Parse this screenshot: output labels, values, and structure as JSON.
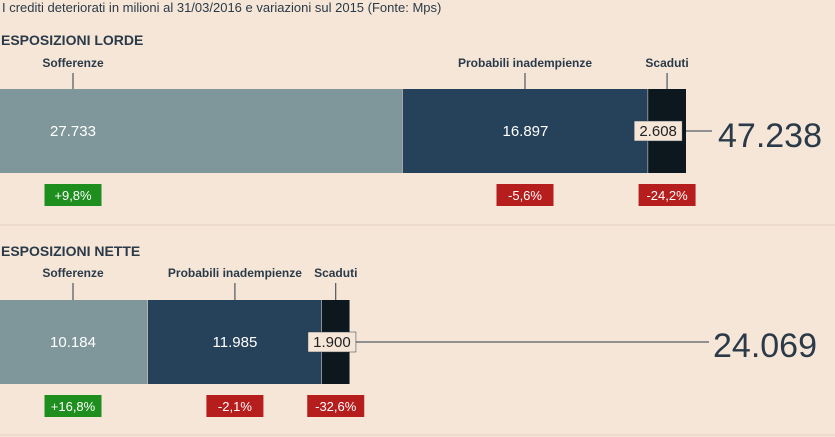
{
  "subtitle": "I crediti deteriorati in milioni al 31/03/2016 e variazioni sul 2015 (Fonte: Mps)",
  "colors": {
    "background": "#f5e6d8",
    "sofferenze": "#7f979b",
    "probabili": "#26425a",
    "scaduti": "#0d181e",
    "positive": "#1e8f1e",
    "negative": "#b61d1d"
  },
  "chart_data": [
    {
      "type": "bar",
      "title": "ESPOSIZIONI LORDE",
      "categories": [
        "Sofferenze",
        "Probabili inadempienze",
        "Scaduti"
      ],
      "values": [
        27733,
        16897,
        2608
      ],
      "value_labels": [
        "27.733",
        "16.897",
        "2.608"
      ],
      "changes": [
        "+9,8%",
        "-5,6%",
        "-24,2%"
      ],
      "total": 47238,
      "total_label": "47.238"
    },
    {
      "type": "bar",
      "title": "ESPOSIZIONI NETTE",
      "categories": [
        "Sofferenze",
        "Probabili inadempienze",
        "Scaduti"
      ],
      "values": [
        10184,
        11985,
        1900
      ],
      "value_labels": [
        "10.184",
        "11.985",
        "1.900"
      ],
      "changes": [
        "+16,8%",
        "-2,1%",
        "-32,6%"
      ],
      "total": 24069,
      "total_label": "24.069"
    }
  ]
}
